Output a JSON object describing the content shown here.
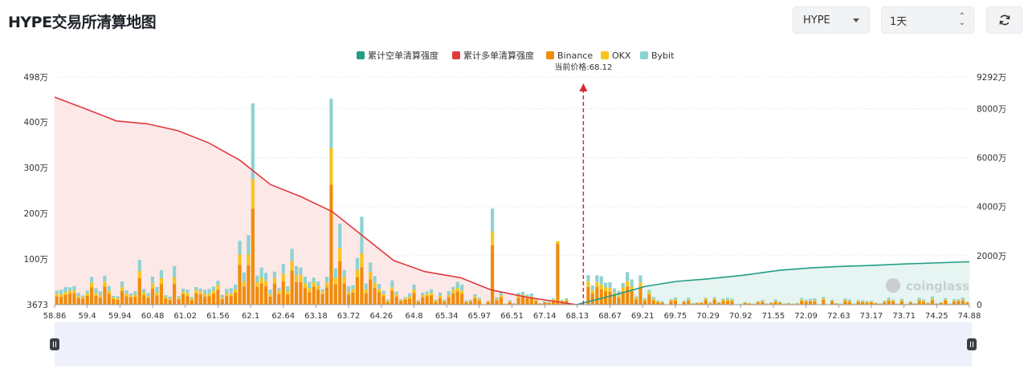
{
  "title": "HYPE交易所清算地图",
  "controls": {
    "coin_select": "HYPE",
    "range_select": "1天",
    "refresh_icon": "refresh-icon",
    "coin_caret_icon": "chevron-down-icon",
    "range_stepper_icon": "up-down-arrows-icon"
  },
  "watermark": "coinglass",
  "colors": {
    "short_cum": "#1f9e84",
    "long_cum": "#e0393e",
    "binance": "#f08c0c",
    "okx": "#f7c51e",
    "bybit": "#8dd2d2",
    "short_fill": "#e6f5f1",
    "long_fill": "#fde8e8"
  },
  "chart_data": {
    "type": "bar",
    "current_price_label": "当前价格:68.12",
    "current_price": 68.12,
    "legend": [
      "累计空单清算强度",
      "累计多单清算强度",
      "Binance",
      "OKX",
      "Bybit"
    ],
    "legend_position": "top-center",
    "x_ticks": [
      "58.86",
      "59.4",
      "59.94",
      "60.48",
      "61.02",
      "61.56",
      "62.1",
      "62.64",
      "63.18",
      "63.72",
      "64.26",
      "64.8",
      "65.34",
      "65.97",
      "66.51",
      "67.14",
      "68.13",
      "68.67",
      "69.21",
      "69.75",
      "70.29",
      "70.92",
      "71.55",
      "72.09",
      "72.63",
      "73.17",
      "73.71",
      "74.25",
      "74.88"
    ],
    "x_range": [
      58.86,
      74.88
    ],
    "left_axis": {
      "ticks": [
        "3673",
        "100万",
        "200万",
        "300万",
        "400万",
        "498万"
      ],
      "range": [
        3673,
        4980000
      ]
    },
    "right_axis": {
      "ticks": [
        "0",
        "2000万",
        "4000万",
        "6000万",
        "8000万",
        "9292万"
      ],
      "range": [
        0,
        92920000
      ]
    },
    "grid": true,
    "bars": {
      "count": 210,
      "peaks": [
        {
          "price": 62.32,
          "binance": 2100000,
          "okx": 640000,
          "bybit": 1660000
        },
        {
          "price": 63.72,
          "binance": 2620000,
          "okx": 800000,
          "bybit": 1080000
        },
        {
          "price": 64.26,
          "binance": 820000,
          "okx": 300000,
          "bybit": 800000
        },
        {
          "price": 66.51,
          "binance": 1300000,
          "okx": 300000,
          "bybit": 500000
        },
        {
          "price": 67.68,
          "binance": 1330000,
          "okx": 60000,
          "bybit": 0
        }
      ]
    },
    "long_cumulative": [
      [
        58.86,
        84700000
      ],
      [
        59.5,
        79000000
      ],
      [
        59.94,
        75000000
      ],
      [
        60.48,
        73800000
      ],
      [
        61.02,
        71000000
      ],
      [
        61.56,
        66000000
      ],
      [
        62.1,
        59000000
      ],
      [
        62.64,
        49000000
      ],
      [
        63.18,
        44000000
      ],
      [
        63.72,
        38000000
      ],
      [
        64.26,
        28000000
      ],
      [
        64.8,
        18000000
      ],
      [
        65.34,
        13500000
      ],
      [
        65.97,
        11000000
      ],
      [
        66.51,
        6000000
      ],
      [
        67.14,
        3000000
      ],
      [
        68.0,
        0
      ]
    ],
    "short_cumulative": [
      [
        68.0,
        0
      ],
      [
        68.67,
        4000000
      ],
      [
        69.21,
        7500000
      ],
      [
        69.75,
        9500000
      ],
      [
        70.29,
        10500000
      ],
      [
        70.92,
        12000000
      ],
      [
        71.55,
        14000000
      ],
      [
        72.09,
        15000000
      ],
      [
        72.63,
        15600000
      ],
      [
        73.17,
        16000000
      ],
      [
        73.71,
        16600000
      ],
      [
        74.25,
        17000000
      ],
      [
        74.88,
        17500000
      ]
    ]
  }
}
